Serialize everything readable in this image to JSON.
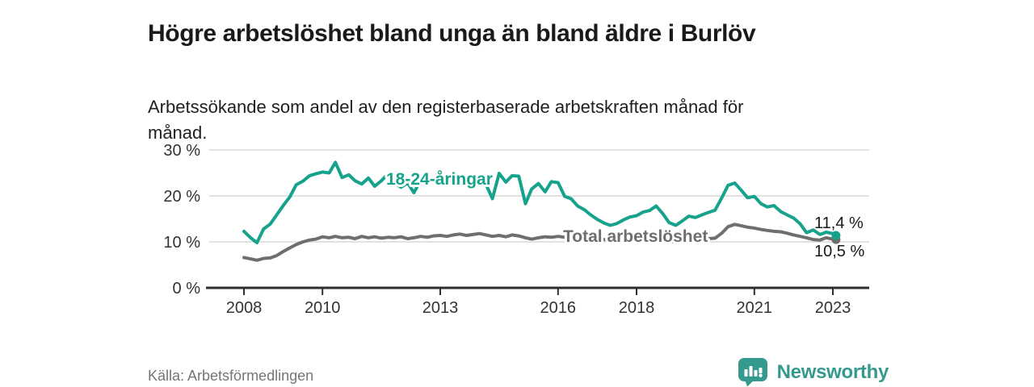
{
  "header": {
    "title": "Högre arbetslöshet bland unga än bland äldre i Burlöv",
    "subtitle": "Arbetssökande som andel av den registerbaserade arbetskraften månad för månad."
  },
  "footer": {
    "source": "Källa: Arbetsförmedlingen",
    "brand_name": "Newsworthy",
    "brand_icon": "newsworthy-speech-bubble-bar-chart-icon"
  },
  "colors": {
    "youth_line": "#17a28b",
    "total_line": "#6e6e6e",
    "gridline": "#d9d9d9",
    "axis": "#2e2e2e",
    "axis_text": "#333333",
    "value_label_text": "#1a1a1a",
    "title_text": "#1a1a1a",
    "source_text": "#757575",
    "brand_teal": "#35998e"
  },
  "chart_data": {
    "type": "line",
    "title": "Högre arbetslöshet bland unga än bland äldre i Burlöv",
    "subtitle": "Arbetssökande som andel av den registerbaserade arbetskraften månad för månad.",
    "x_unit": "year (monthly observations)",
    "xlim": [
      2007.9,
      2023.9
    ],
    "ylim": [
      0,
      30
    ],
    "grid": "horizontal",
    "legend_position": "inline-labels-on-lines",
    "y_ticks": [
      {
        "value": 0,
        "label": "0 %"
      },
      {
        "value": 10,
        "label": "10 %"
      },
      {
        "value": 20,
        "label": "20 %"
      },
      {
        "value": 30,
        "label": "30 %"
      }
    ],
    "x_ticks": [
      {
        "value": 2008,
        "label": "2008"
      },
      {
        "value": 2010,
        "label": "2010"
      },
      {
        "value": 2013,
        "label": "2013"
      },
      {
        "value": 2016,
        "label": "2016"
      },
      {
        "value": 2018,
        "label": "2018"
      },
      {
        "value": 2021,
        "label": "2021"
      },
      {
        "value": 2023,
        "label": "2023"
      }
    ],
    "series": [
      {
        "name": "Total arbetslöshet",
        "color": "#6e6e6e",
        "end_label": "10,5 %",
        "end_value": 10.5,
        "points": [
          [
            2008.0,
            6.6
          ],
          [
            2008.17,
            6.3
          ],
          [
            2008.33,
            6.0
          ],
          [
            2008.5,
            6.4
          ],
          [
            2008.67,
            6.5
          ],
          [
            2008.83,
            7.0
          ],
          [
            2009.0,
            7.9
          ],
          [
            2009.17,
            8.7
          ],
          [
            2009.33,
            9.4
          ],
          [
            2009.5,
            10.0
          ],
          [
            2009.67,
            10.4
          ],
          [
            2009.83,
            10.6
          ],
          [
            2010.0,
            11.1
          ],
          [
            2010.17,
            10.9
          ],
          [
            2010.33,
            11.2
          ],
          [
            2010.5,
            10.9
          ],
          [
            2010.67,
            11.0
          ],
          [
            2010.83,
            10.7
          ],
          [
            2011.0,
            11.2
          ],
          [
            2011.17,
            10.9
          ],
          [
            2011.33,
            11.1
          ],
          [
            2011.5,
            10.8
          ],
          [
            2011.67,
            11.0
          ],
          [
            2011.83,
            10.9
          ],
          [
            2012.0,
            11.1
          ],
          [
            2012.17,
            10.7
          ],
          [
            2012.33,
            10.9
          ],
          [
            2012.5,
            11.2
          ],
          [
            2012.67,
            11.0
          ],
          [
            2012.83,
            11.3
          ],
          [
            2013.0,
            11.4
          ],
          [
            2013.17,
            11.2
          ],
          [
            2013.33,
            11.5
          ],
          [
            2013.5,
            11.7
          ],
          [
            2013.67,
            11.4
          ],
          [
            2013.83,
            11.6
          ],
          [
            2014.0,
            11.8
          ],
          [
            2014.17,
            11.5
          ],
          [
            2014.33,
            11.2
          ],
          [
            2014.5,
            11.4
          ],
          [
            2014.67,
            11.1
          ],
          [
            2014.83,
            11.5
          ],
          [
            2015.0,
            11.3
          ],
          [
            2015.17,
            10.9
          ],
          [
            2015.33,
            10.6
          ],
          [
            2015.5,
            10.9
          ],
          [
            2015.67,
            11.1
          ],
          [
            2015.83,
            11.0
          ],
          [
            2016.0,
            11.2
          ],
          [
            2016.17,
            11.0
          ],
          [
            2016.33,
            10.8
          ],
          [
            2016.5,
            10.9
          ],
          [
            2016.67,
            10.7
          ],
          [
            2016.83,
            10.8
          ],
          [
            2017.0,
            10.6
          ],
          [
            2017.17,
            10.5
          ],
          [
            2017.33,
            10.4
          ],
          [
            2017.5,
            10.5
          ],
          [
            2017.67,
            10.3
          ],
          [
            2017.83,
            10.4
          ],
          [
            2018.0,
            10.3
          ],
          [
            2018.17,
            10.2
          ],
          [
            2018.33,
            10.3
          ],
          [
            2018.5,
            10.1
          ],
          [
            2018.67,
            10.2
          ],
          [
            2018.83,
            10.1
          ],
          [
            2019.0,
            10.0
          ],
          [
            2019.17,
            10.2
          ],
          [
            2019.33,
            10.3
          ],
          [
            2019.5,
            10.4
          ],
          [
            2019.67,
            10.5
          ],
          [
            2019.83,
            10.7
          ],
          [
            2020.0,
            10.8
          ],
          [
            2020.17,
            11.9
          ],
          [
            2020.33,
            13.3
          ],
          [
            2020.5,
            13.8
          ],
          [
            2020.67,
            13.5
          ],
          [
            2020.83,
            13.2
          ],
          [
            2021.0,
            13.0
          ],
          [
            2021.17,
            12.7
          ],
          [
            2021.33,
            12.5
          ],
          [
            2021.5,
            12.3
          ],
          [
            2021.67,
            12.2
          ],
          [
            2021.83,
            11.9
          ],
          [
            2022.0,
            11.5
          ],
          [
            2022.17,
            11.2
          ],
          [
            2022.33,
            10.9
          ],
          [
            2022.5,
            10.5
          ],
          [
            2022.67,
            10.4
          ],
          [
            2022.83,
            10.9
          ],
          [
            2023.0,
            10.6
          ],
          [
            2023.08,
            10.5
          ]
        ]
      },
      {
        "name": "18-24-åringar",
        "color": "#17a28b",
        "end_label": "11,4 %",
        "end_value": 11.4,
        "points": [
          [
            2008.0,
            12.3
          ],
          [
            2008.17,
            10.9
          ],
          [
            2008.33,
            9.8
          ],
          [
            2008.5,
            12.8
          ],
          [
            2008.67,
            13.9
          ],
          [
            2008.83,
            15.8
          ],
          [
            2009.0,
            17.9
          ],
          [
            2009.17,
            19.8
          ],
          [
            2009.33,
            22.4
          ],
          [
            2009.5,
            23.2
          ],
          [
            2009.67,
            24.4
          ],
          [
            2009.83,
            24.8
          ],
          [
            2010.0,
            25.2
          ],
          [
            2010.17,
            25.0
          ],
          [
            2010.33,
            27.3
          ],
          [
            2010.5,
            24.0
          ],
          [
            2010.67,
            24.6
          ],
          [
            2010.83,
            23.3
          ],
          [
            2011.0,
            22.6
          ],
          [
            2011.17,
            23.9
          ],
          [
            2011.33,
            22.1
          ],
          [
            2011.5,
            23.3
          ],
          [
            2011.67,
            24.8
          ],
          [
            2011.83,
            22.8
          ],
          [
            2012.0,
            21.9
          ],
          [
            2012.17,
            22.8
          ],
          [
            2012.33,
            20.7
          ],
          [
            2012.5,
            23.4
          ],
          [
            2012.67,
            23.9
          ],
          [
            2012.83,
            23.2
          ],
          [
            2013.0,
            23.5
          ],
          [
            2013.17,
            24.1
          ],
          [
            2013.33,
            23.0
          ],
          [
            2013.5,
            23.6
          ],
          [
            2013.67,
            22.7
          ],
          [
            2013.83,
            23.2
          ],
          [
            2014.0,
            23.0
          ],
          [
            2014.17,
            22.4
          ],
          [
            2014.33,
            19.4
          ],
          [
            2014.5,
            24.9
          ],
          [
            2014.67,
            23.0
          ],
          [
            2014.83,
            24.4
          ],
          [
            2015.0,
            24.3
          ],
          [
            2015.17,
            18.3
          ],
          [
            2015.33,
            21.5
          ],
          [
            2015.5,
            22.7
          ],
          [
            2015.67,
            20.9
          ],
          [
            2015.83,
            23.1
          ],
          [
            2016.0,
            22.9
          ],
          [
            2016.17,
            19.9
          ],
          [
            2016.33,
            19.4
          ],
          [
            2016.5,
            17.8
          ],
          [
            2016.67,
            17.0
          ],
          [
            2016.83,
            15.9
          ],
          [
            2017.0,
            14.9
          ],
          [
            2017.17,
            14.1
          ],
          [
            2017.33,
            13.6
          ],
          [
            2017.5,
            14.0
          ],
          [
            2017.67,
            14.8
          ],
          [
            2017.83,
            15.4
          ],
          [
            2018.0,
            15.7
          ],
          [
            2018.17,
            16.5
          ],
          [
            2018.33,
            16.8
          ],
          [
            2018.5,
            17.8
          ],
          [
            2018.67,
            16.1
          ],
          [
            2018.83,
            14.2
          ],
          [
            2019.0,
            13.6
          ],
          [
            2019.17,
            14.6
          ],
          [
            2019.33,
            15.6
          ],
          [
            2019.5,
            15.3
          ],
          [
            2019.67,
            15.9
          ],
          [
            2019.83,
            16.4
          ],
          [
            2020.0,
            16.9
          ],
          [
            2020.17,
            19.6
          ],
          [
            2020.33,
            22.3
          ],
          [
            2020.5,
            22.8
          ],
          [
            2020.67,
            21.2
          ],
          [
            2020.83,
            19.6
          ],
          [
            2021.0,
            19.9
          ],
          [
            2021.17,
            18.3
          ],
          [
            2021.33,
            17.6
          ],
          [
            2021.5,
            17.9
          ],
          [
            2021.67,
            16.6
          ],
          [
            2021.83,
            15.9
          ],
          [
            2022.0,
            15.2
          ],
          [
            2022.17,
            13.9
          ],
          [
            2022.33,
            12.0
          ],
          [
            2022.5,
            12.6
          ],
          [
            2022.67,
            11.6
          ],
          [
            2022.83,
            12.1
          ],
          [
            2023.0,
            11.8
          ],
          [
            2023.08,
            11.4
          ]
        ]
      }
    ]
  }
}
